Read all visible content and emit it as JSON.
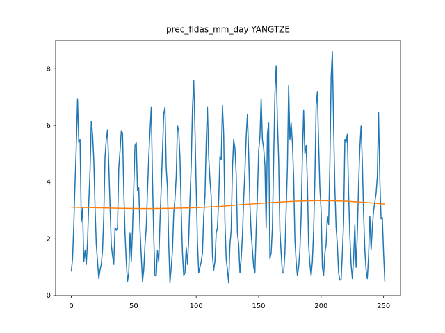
{
  "chart_data": {
    "type": "line",
    "title": "prec_fldas_mm_day YANGTZE",
    "xlim": [
      -12.55,
      263.55
    ],
    "xticks": [
      0,
      50,
      100,
      150,
      200,
      250
    ],
    "ylim": [
      0,
      9.01
    ],
    "yticks": [
      0,
      2,
      4,
      6,
      8
    ],
    "series": [
      {
        "color": "#1f77b4",
        "x": [
          0,
          1,
          2,
          3,
          4,
          5,
          6,
          7,
          8,
          9,
          10,
          11,
          12,
          13,
          14,
          15,
          16,
          17,
          18,
          19,
          20,
          21,
          22,
          23,
          24,
          25,
          26,
          27,
          28,
          29,
          30,
          31,
          32,
          33,
          34,
          35,
          36,
          37,
          38,
          39,
          40,
          41,
          42,
          43,
          44,
          45,
          46,
          47,
          48,
          49,
          50,
          51,
          52,
          53,
          54,
          55,
          56,
          57,
          58,
          59,
          60,
          61,
          62,
          63,
          64,
          65,
          66,
          67,
          68,
          69,
          70,
          71,
          72,
          73,
          74,
          75,
          76,
          77,
          78,
          79,
          80,
          81,
          82,
          83,
          84,
          85,
          86,
          87,
          88,
          89,
          90,
          91,
          92,
          93,
          94,
          95,
          96,
          97,
          98,
          99,
          100,
          101,
          102,
          103,
          104,
          105,
          106,
          107,
          108,
          109,
          110,
          111,
          112,
          113,
          114,
          115,
          116,
          117,
          118,
          119,
          120,
          121,
          122,
          123,
          124,
          125,
          126,
          127,
          128,
          129,
          130,
          131,
          132,
          133,
          134,
          135,
          136,
          137,
          138,
          139,
          140,
          141,
          142,
          143,
          144,
          145,
          146,
          147,
          148,
          149,
          150,
          151,
          152,
          153,
          154,
          155,
          156,
          157,
          158,
          159,
          160,
          161,
          162,
          163,
          164,
          165,
          166,
          167,
          168,
          169,
          170,
          171,
          172,
          173,
          174,
          175,
          176,
          177,
          178,
          179,
          180,
          181,
          182,
          183,
          184,
          185,
          186,
          187,
          188,
          189,
          190,
          191,
          192,
          193,
          194,
          195,
          196,
          197,
          198,
          199,
          200,
          201,
          202,
          203,
          204,
          205,
          206,
          207,
          208,
          209,
          210,
          211,
          212,
          213,
          214,
          215,
          216,
          217,
          218,
          219,
          220,
          221,
          222,
          223,
          224,
          225,
          226,
          227,
          228,
          229,
          230,
          231,
          232,
          233,
          234,
          235,
          236,
          237,
          238,
          239,
          240,
          241,
          242,
          243,
          244,
          245,
          246,
          247,
          248,
          249,
          250,
          251
        ],
        "values": [
          0.85,
          1.3,
          2.5,
          4.0,
          5.3,
          6.95,
          5.4,
          5.5,
          2.6,
          3.1,
          1.2,
          1.6,
          1.1,
          1.9,
          3.3,
          4.4,
          6.15,
          5.7,
          4.8,
          3.1,
          1.8,
          1.2,
          0.6,
          0.9,
          1.1,
          1.6,
          2.8,
          4.9,
          5.5,
          5.85,
          4.6,
          3.2,
          1.8,
          1.4,
          1.1,
          2.4,
          2.3,
          2.4,
          4.5,
          5.1,
          5.8,
          5.75,
          3.7,
          2.2,
          1.2,
          0.5,
          0.8,
          2.2,
          1.2,
          2.3,
          3.8,
          5.3,
          5.4,
          3.7,
          3.8,
          2.3,
          1.4,
          0.5,
          0.9,
          1.8,
          2.4,
          3.7,
          4.9,
          5.8,
          6.65,
          4.1,
          2.1,
          0.7,
          0.7,
          1.6,
          1.2,
          2.6,
          3.8,
          5.1,
          6.4,
          6.65,
          4.5,
          3.8,
          1.8,
          0.45,
          1.0,
          1.6,
          2.9,
          3.4,
          4.2,
          6.0,
          5.8,
          4.9,
          3.0,
          1.5,
          0.7,
          0.8,
          1.7,
          1.1,
          2.0,
          3.4,
          4.6,
          6.6,
          7.6,
          5.9,
          3.8,
          1.9,
          0.8,
          1.0,
          1.2,
          1.5,
          2.8,
          3.5,
          5.4,
          6.65,
          4.9,
          4.1,
          3.5,
          1.4,
          0.9,
          1.2,
          2.2,
          2.4,
          3.4,
          4.9,
          4.8,
          6.7,
          5.7,
          2.6,
          1.3,
          0.9,
          0.45,
          1.8,
          2.3,
          4.5,
          5.5,
          5.2,
          4.3,
          2.2,
          1.8,
          0.8,
          1.3,
          2.1,
          3.4,
          4.4,
          5.6,
          6.4,
          5.0,
          3.2,
          2.2,
          1.6,
          1.0,
          0.8,
          2.3,
          3.5,
          5.1,
          5.6,
          6.95,
          5.5,
          5.2,
          4.6,
          2.4,
          5.7,
          6.1,
          1.3,
          1.5,
          2.4,
          4.8,
          7.1,
          8.1,
          6.2,
          4.8,
          2.3,
          1.5,
          0.8,
          0.8,
          1.5,
          3.0,
          4.5,
          7.4,
          5.5,
          6.1,
          5.4,
          4.2,
          2.0,
          1.2,
          0.7,
          1.0,
          1.6,
          2.8,
          4.9,
          6.55,
          5.0,
          5.3,
          4.0,
          1.8,
          1.1,
          0.7,
          1.2,
          2.3,
          4.1,
          6.7,
          7.2,
          5.4,
          3.8,
          3.0,
          1.0,
          0.7,
          1.5,
          1.8,
          2.8,
          2.5,
          4.6,
          7.7,
          8.6,
          6.0,
          3.8,
          2.4,
          1.8,
          0.8,
          0.55,
          0.55,
          1.5,
          2.6,
          5.5,
          5.4,
          5.7,
          3.6,
          2.1,
          1.1,
          0.6,
          1.3,
          2.5,
          1.0,
          2.2,
          3.9,
          5.2,
          6.0,
          4.7,
          2.9,
          1.6,
          0.9,
          0.6,
          1.4,
          2.8,
          1.6,
          2.4,
          3.0,
          3.3,
          3.6,
          4.2,
          6.45,
          4.1,
          2.7,
          2.75,
          1.5,
          0.5
        ]
      },
      {
        "color": "#ff7f0e",
        "x": [
          0,
          20,
          40,
          60,
          80,
          100,
          120,
          140,
          160,
          180,
          200,
          220,
          240,
          251
        ],
        "values": [
          3.12,
          3.1,
          3.08,
          3.07,
          3.08,
          3.1,
          3.15,
          3.22,
          3.28,
          3.33,
          3.35,
          3.33,
          3.27,
          3.23
        ]
      }
    ]
  }
}
